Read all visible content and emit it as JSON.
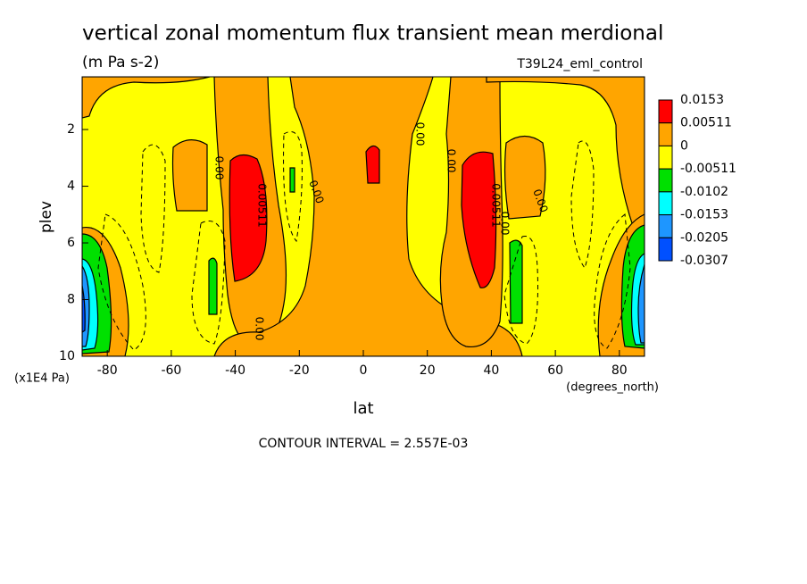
{
  "chart_data": {
    "type": "contour",
    "title": "vertical zonal momentum flux transient mean merdional",
    "subtitle": "(m Pa s-2)",
    "dataset": "T39L24_eml_control",
    "x_label": "lat",
    "x_unit": "(degrees_north)",
    "y_label": "plev",
    "y_unit": "(x1E4 Pa)",
    "xlim": [
      -87.86,
      87.86
    ],
    "xticks": [
      -80,
      -60,
      -40,
      -20,
      0,
      20,
      40,
      60,
      80
    ],
    "ylim": [
      10,
      0.14
    ],
    "yticks": [
      2,
      4,
      6,
      8,
      10
    ],
    "levels": [
      0.0153,
      0.00511,
      0,
      -0.00511,
      -0.0102,
      -0.0153,
      -0.0205,
      -0.0307
    ],
    "colors": [
      "#ff0000",
      "#ffa500",
      "#ffff00",
      "#00e000",
      "#00ffff",
      "#1e96ff",
      "#0050ff"
    ],
    "contour_labels": [
      "0.00",
      "0.00511"
    ],
    "footer": "CONTOUR INTERVAL = 2.557E-03"
  }
}
